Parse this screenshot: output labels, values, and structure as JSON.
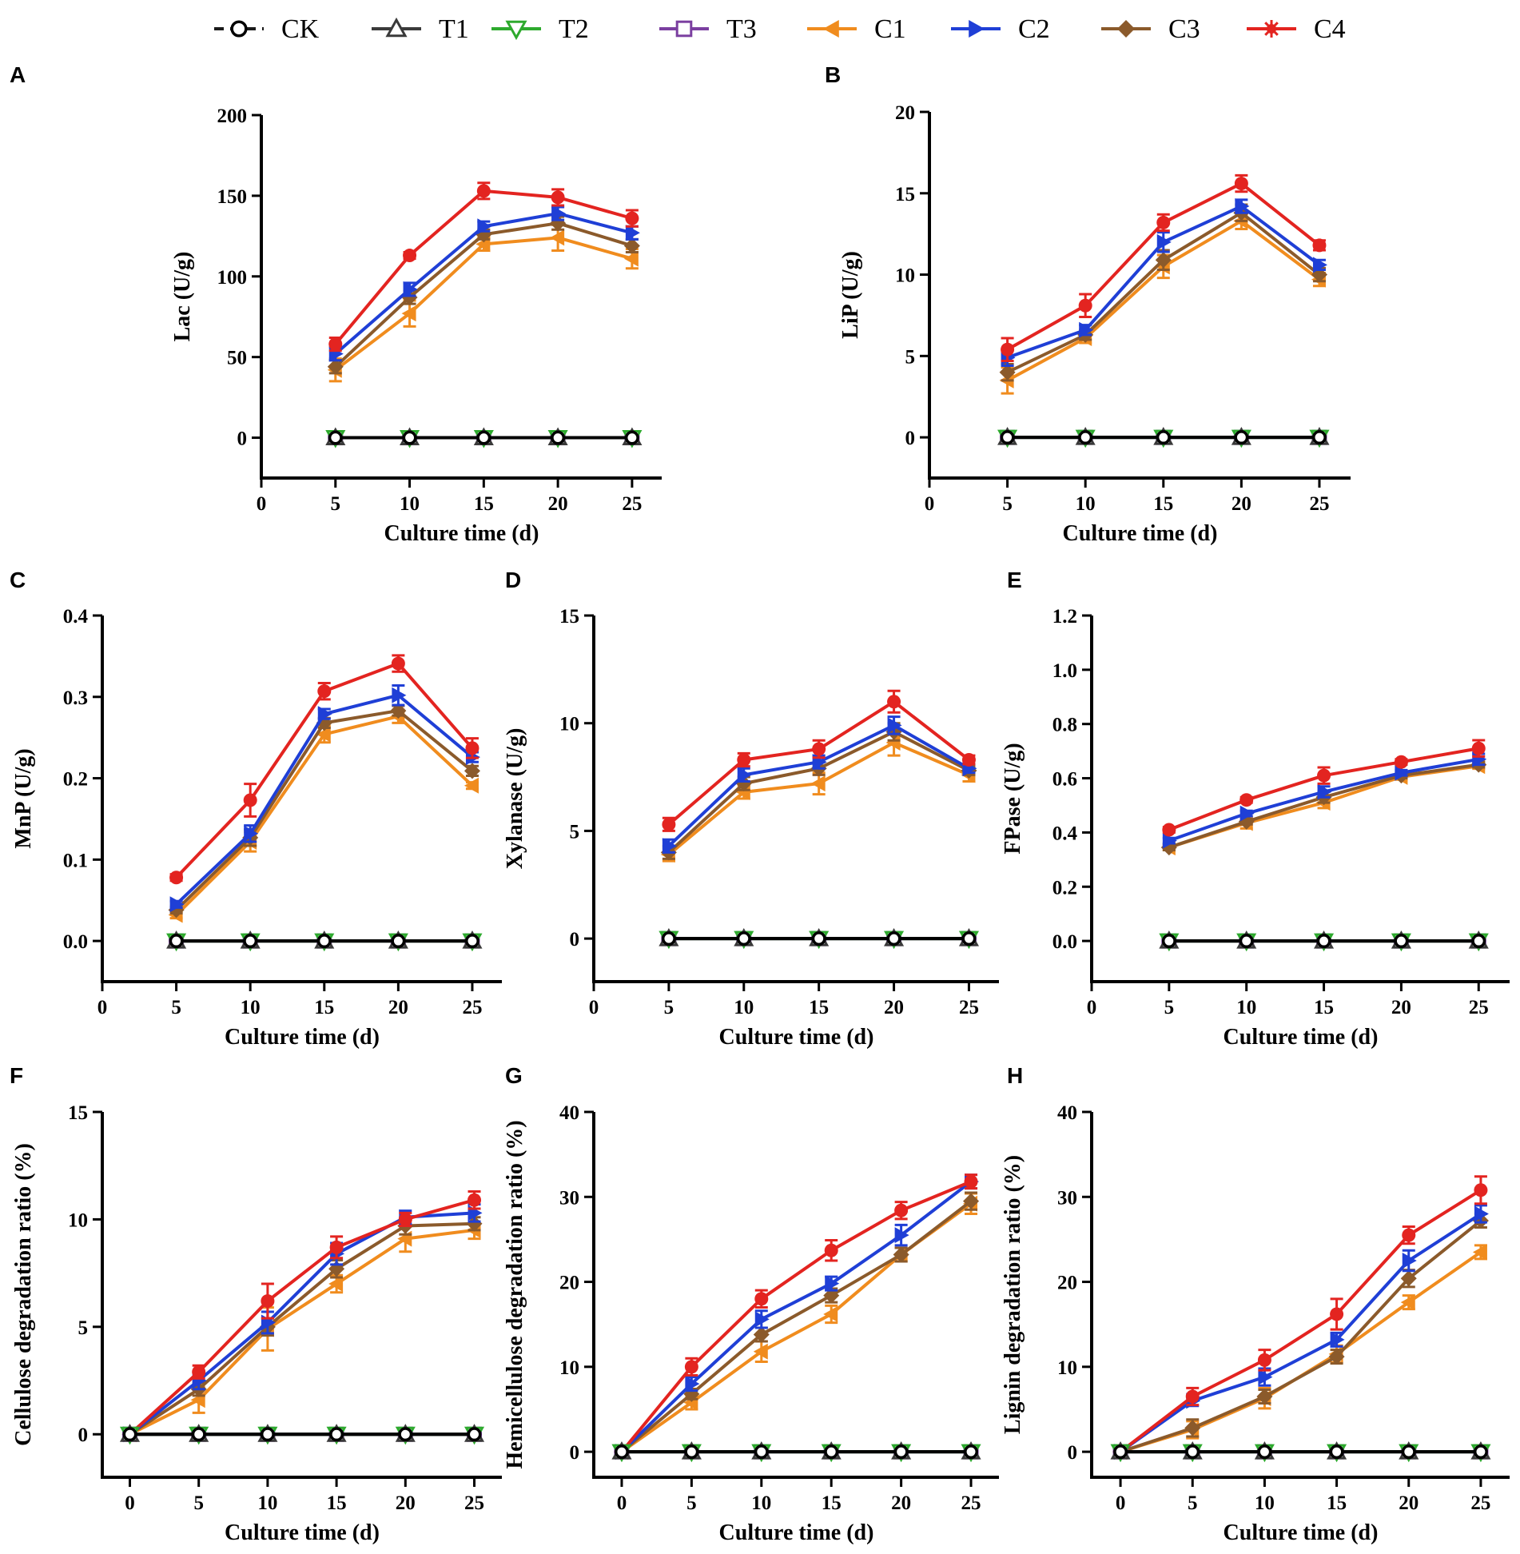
{
  "legend": [
    {
      "id": "CK",
      "label": "CK",
      "color": "#1a1a1a",
      "marker": "circle-open",
      "dashed": true
    },
    {
      "id": "T1",
      "label": "T1",
      "color": "#3a3a3a",
      "marker": "triangle-up"
    },
    {
      "id": "T2",
      "label": "T2",
      "color": "#2eaa2e",
      "marker": "triangle-down"
    },
    {
      "id": "T3",
      "label": "T3",
      "color": "#7b3fa0",
      "marker": "square-open"
    },
    {
      "id": "C1",
      "label": "C1",
      "color": "#f08c1e",
      "marker": "triangle-left"
    },
    {
      "id": "C2",
      "label": "C2",
      "color": "#1f3fd6",
      "marker": "triangle-right"
    },
    {
      "id": "C3",
      "label": "C3",
      "color": "#8b5a2b",
      "marker": "diamond"
    },
    {
      "id": "C4",
      "label": "C4",
      "color": "#e32420",
      "marker": "asterisk"
    }
  ],
  "chart_data": [
    {
      "panel": "A",
      "type": "line",
      "xlabel": "Culture time (d)",
      "ylabel": "Lac (U/g)",
      "xlim": [
        0,
        27
      ],
      "ylim": [
        -25,
        200
      ],
      "xticks": [
        0,
        5,
        10,
        15,
        20,
        25
      ],
      "yticks": [
        0,
        50,
        100,
        150,
        200
      ],
      "x": [
        5,
        10,
        15,
        20,
        25
      ],
      "series": [
        {
          "name": "C4",
          "values": [
            58,
            113,
            153,
            149,
            136
          ],
          "err": [
            4,
            2,
            5,
            5,
            5
          ]
        },
        {
          "name": "C2",
          "values": [
            52,
            92,
            131,
            139,
            127
          ],
          "err": [
            4,
            4,
            3,
            4,
            4
          ]
        },
        {
          "name": "C3",
          "values": [
            44,
            87,
            126,
            133,
            119
          ],
          "err": [
            4,
            4,
            3,
            4,
            4
          ]
        },
        {
          "name": "C1",
          "values": [
            42,
            77,
            120,
            124,
            111
          ],
          "err": [
            7,
            8,
            4,
            8,
            6
          ]
        },
        {
          "name": "CK",
          "values": [
            0,
            0,
            0,
            0,
            0
          ]
        },
        {
          "name": "T1",
          "values": [
            0,
            0,
            0,
            0,
            0
          ]
        },
        {
          "name": "T2",
          "values": [
            0,
            0,
            0,
            0,
            0
          ]
        },
        {
          "name": "T3",
          "values": [
            0,
            0,
            0,
            0,
            0
          ]
        }
      ]
    },
    {
      "panel": "B",
      "type": "line",
      "xlabel": "Culture time (d)",
      "ylabel": "LiP (U/g)",
      "xlim": [
        0,
        27
      ],
      "ylim": [
        -2.5,
        20
      ],
      "xticks": [
        0,
        5,
        10,
        15,
        20,
        25
      ],
      "yticks": [
        0,
        5,
        10,
        15,
        20
      ],
      "x": [
        5,
        10,
        15,
        20,
        25
      ],
      "series": [
        {
          "name": "C4",
          "values": [
            5.4,
            8.1,
            13.2,
            15.6,
            11.8
          ],
          "err": [
            0.7,
            0.7,
            0.5,
            0.5,
            0.3
          ]
        },
        {
          "name": "C2",
          "values": [
            4.9,
            6.6,
            12.0,
            14.2,
            10.6
          ],
          "err": [
            0.5,
            0.3,
            0.6,
            0.4,
            0.3
          ]
        },
        {
          "name": "C3",
          "values": [
            4.0,
            6.3,
            10.9,
            13.8,
            10.0
          ],
          "err": [
            0.5,
            0.3,
            0.6,
            0.5,
            0.4
          ]
        },
        {
          "name": "C1",
          "values": [
            3.5,
            6.1,
            10.5,
            13.3,
            9.7
          ],
          "err": [
            0.8,
            0.3,
            0.7,
            0.5,
            0.4
          ]
        },
        {
          "name": "CK",
          "values": [
            0,
            0,
            0,
            0,
            0
          ]
        },
        {
          "name": "T1",
          "values": [
            0,
            0,
            0,
            0,
            0
          ]
        },
        {
          "name": "T2",
          "values": [
            0,
            0,
            0,
            0,
            0
          ]
        },
        {
          "name": "T3",
          "values": [
            0,
            0,
            0,
            0,
            0
          ]
        }
      ]
    },
    {
      "panel": "C",
      "type": "line",
      "xlabel": "Culture time (d)",
      "ylabel": "MnP (U/g)",
      "xlim": [
        0,
        27
      ],
      "ylim": [
        -0.05,
        0.4
      ],
      "xticks": [
        0,
        5,
        10,
        15,
        20,
        25
      ],
      "yticks": [
        0.0,
        0.1,
        0.2,
        0.3,
        0.4
      ],
      "ytick_labels": [
        "0.0",
        "0.1",
        "0.2",
        "0.3",
        "0.4"
      ],
      "x": [
        5,
        10,
        15,
        20,
        25
      ],
      "series": [
        {
          "name": "C4",
          "values": [
            0.078,
            0.173,
            0.307,
            0.341,
            0.237
          ],
          "err": [
            0.004,
            0.02,
            0.01,
            0.01,
            0.012
          ]
        },
        {
          "name": "C2",
          "values": [
            0.045,
            0.132,
            0.279,
            0.302,
            0.226
          ],
          "err": [
            0.004,
            0.01,
            0.006,
            0.012,
            0.006
          ]
        },
        {
          "name": "C3",
          "values": [
            0.038,
            0.127,
            0.268,
            0.283,
            0.209
          ],
          "err": [
            0.004,
            0.01,
            0.006,
            0.006,
            0.006
          ]
        },
        {
          "name": "C1",
          "values": [
            0.032,
            0.122,
            0.254,
            0.276,
            0.191
          ],
          "err": [
            0.004,
            0.012,
            0.01,
            0.008,
            0.004
          ]
        },
        {
          "name": "CK",
          "values": [
            0,
            0,
            0,
            0,
            0
          ]
        },
        {
          "name": "T1",
          "values": [
            0,
            0,
            0,
            0,
            0
          ]
        },
        {
          "name": "T2",
          "values": [
            0,
            0,
            0,
            0,
            0
          ]
        },
        {
          "name": "T3",
          "values": [
            0,
            0,
            0,
            0,
            0
          ]
        }
      ]
    },
    {
      "panel": "D",
      "type": "line",
      "xlabel": "Culture time (d)",
      "ylabel": "Xylanase (U/g)",
      "xlim": [
        0,
        27
      ],
      "ylim": [
        -2,
        15
      ],
      "xticks": [
        0,
        5,
        10,
        15,
        20,
        25
      ],
      "yticks": [
        0,
        5,
        10,
        15
      ],
      "x": [
        5,
        10,
        15,
        20,
        25
      ],
      "series": [
        {
          "name": "C4",
          "values": [
            5.3,
            8.3,
            8.8,
            11.0,
            8.3
          ],
          "err": [
            0.3,
            0.3,
            0.4,
            0.5,
            0.2
          ]
        },
        {
          "name": "C2",
          "values": [
            4.3,
            7.6,
            8.2,
            9.9,
            7.9
          ],
          "err": [
            0.3,
            0.3,
            0.3,
            0.4,
            0.2
          ]
        },
        {
          "name": "C3",
          "values": [
            4.0,
            7.2,
            7.9,
            9.6,
            7.8
          ],
          "err": [
            0.3,
            0.3,
            0.3,
            0.4,
            0.2
          ]
        },
        {
          "name": "C1",
          "values": [
            3.9,
            6.8,
            7.2,
            9.1,
            7.6
          ],
          "err": [
            0.3,
            0.3,
            0.5,
            0.6,
            0.3
          ]
        },
        {
          "name": "CK",
          "values": [
            0,
            0,
            0,
            0,
            0
          ]
        },
        {
          "name": "T1",
          "values": [
            0,
            0,
            0,
            0,
            0
          ]
        },
        {
          "name": "T2",
          "values": [
            0,
            0,
            0,
            0,
            0
          ]
        },
        {
          "name": "T3",
          "values": [
            0,
            0,
            0,
            0,
            0
          ]
        }
      ]
    },
    {
      "panel": "E",
      "type": "line",
      "xlabel": "Culture time (d)",
      "ylabel": "FPase (U/g)",
      "xlim": [
        0,
        27
      ],
      "ylim": [
        -0.15,
        1.2
      ],
      "xticks": [
        0,
        5,
        10,
        15,
        20,
        25
      ],
      "yticks": [
        0.0,
        0.2,
        0.4,
        0.6,
        0.8,
        1.0,
        1.2
      ],
      "ytick_labels": [
        "0.0",
        "0.2",
        "0.4",
        "0.6",
        "0.8",
        "1.0",
        "1.2"
      ],
      "x": [
        5,
        10,
        15,
        20,
        25
      ],
      "series": [
        {
          "name": "C4",
          "values": [
            0.41,
            0.52,
            0.61,
            0.66,
            0.71
          ],
          "err": [
            0.01,
            0.01,
            0.03,
            0.01,
            0.03
          ]
        },
        {
          "name": "C2",
          "values": [
            0.37,
            0.47,
            0.55,
            0.62,
            0.67
          ],
          "err": [
            0.01,
            0.01,
            0.02,
            0.01,
            0.02
          ]
        },
        {
          "name": "C3",
          "values": [
            0.345,
            0.44,
            0.53,
            0.61,
            0.65
          ],
          "err": [
            0.01,
            0.01,
            0.02,
            0.01,
            0.01
          ]
        },
        {
          "name": "C1",
          "values": [
            0.345,
            0.435,
            0.51,
            0.605,
            0.645
          ],
          "err": [
            0.01,
            0.02,
            0.02,
            0.01,
            0.01
          ]
        },
        {
          "name": "CK",
          "values": [
            0,
            0,
            0,
            0,
            0
          ]
        },
        {
          "name": "T1",
          "values": [
            0,
            0,
            0,
            0,
            0
          ]
        },
        {
          "name": "T2",
          "values": [
            0,
            0,
            0,
            0,
            0
          ]
        },
        {
          "name": "T3",
          "values": [
            0,
            0,
            0,
            0,
            0
          ]
        }
      ]
    },
    {
      "panel": "F",
      "type": "line",
      "xlabel": "Culture time (d)",
      "ylabel": "Cellulose degradation ratio (%)",
      "xlim": [
        -2,
        27
      ],
      "ylim": [
        -2,
        15
      ],
      "xticks": [
        0,
        5,
        10,
        15,
        20,
        25
      ],
      "yticks": [
        0,
        5,
        10,
        15
      ],
      "x": [
        0,
        5,
        10,
        15,
        20,
        25
      ],
      "series": [
        {
          "name": "C4",
          "values": [
            0,
            2.9,
            6.2,
            8.7,
            10.0,
            10.9
          ],
          "err": [
            0,
            0.3,
            0.8,
            0.5,
            0.3,
            0.4
          ]
        },
        {
          "name": "C2",
          "values": [
            0,
            2.5,
            5.2,
            8.4,
            10.1,
            10.3
          ],
          "err": [
            0,
            0.4,
            0.5,
            0.5,
            0.3,
            0.4
          ]
        },
        {
          "name": "C3",
          "values": [
            0,
            2.1,
            5.0,
            7.7,
            9.7,
            9.8
          ],
          "err": [
            0,
            0.3,
            0.4,
            0.4,
            0.4,
            0.3
          ]
        },
        {
          "name": "C1",
          "values": [
            0,
            1.6,
            4.9,
            7.0,
            9.1,
            9.5
          ],
          "err": [
            0,
            0.6,
            1.0,
            0.4,
            0.6,
            0.4
          ]
        },
        {
          "name": "CK",
          "values": [
            0,
            0,
            0,
            0,
            0,
            0
          ]
        },
        {
          "name": "T1",
          "values": [
            0,
            0,
            0,
            0,
            0,
            0
          ]
        },
        {
          "name": "T2",
          "values": [
            0,
            0,
            0,
            0,
            0,
            0
          ]
        },
        {
          "name": "T3",
          "values": [
            0,
            0,
            0,
            0,
            0,
            0
          ]
        }
      ]
    },
    {
      "panel": "G",
      "type": "line",
      "xlabel": "Culture time (d)",
      "ylabel": "Hemicellulose degradation ratio (%)",
      "xlim": [
        -2,
        27
      ],
      "ylim": [
        -3,
        40
      ],
      "xticks": [
        0,
        5,
        10,
        15,
        20,
        25
      ],
      "yticks": [
        0,
        10,
        20,
        30,
        40
      ],
      "x": [
        0,
        5,
        10,
        15,
        20,
        25
      ],
      "series": [
        {
          "name": "C4",
          "values": [
            0,
            10.0,
            18.0,
            23.7,
            28.4,
            31.8
          ],
          "err": [
            0,
            1.0,
            1.0,
            1.2,
            1.0,
            0.8
          ]
        },
        {
          "name": "C2",
          "values": [
            0,
            8.0,
            15.6,
            19.8,
            25.5,
            31.8
          ],
          "err": [
            0,
            0.8,
            1.0,
            0.8,
            1.2,
            0.8
          ]
        },
        {
          "name": "C3",
          "values": [
            0,
            6.8,
            13.8,
            18.4,
            23.2,
            29.5
          ],
          "err": [
            0,
            0.6,
            0.8,
            0.8,
            0.8,
            1.0
          ]
        },
        {
          "name": "C1",
          "values": [
            0,
            5.8,
            11.8,
            16.2,
            23.2,
            29.2
          ],
          "err": [
            0,
            0.8,
            1.2,
            1.0,
            0.8,
            1.2
          ]
        },
        {
          "name": "CK",
          "values": [
            0,
            0,
            0,
            0,
            0,
            0
          ]
        },
        {
          "name": "T1",
          "values": [
            0,
            0,
            0,
            0,
            0,
            0
          ]
        },
        {
          "name": "T2",
          "values": [
            0,
            0,
            0,
            0,
            0,
            0
          ]
        },
        {
          "name": "T3",
          "values": [
            0,
            0,
            0,
            0,
            0,
            0
          ]
        }
      ]
    },
    {
      "panel": "H",
      "type": "line",
      "xlabel": "Culture time (d)",
      "ylabel": "Lignin degradation ratio (%)",
      "xlim": [
        -2,
        27
      ],
      "ylim": [
        -3,
        40
      ],
      "xticks": [
        0,
        5,
        10,
        15,
        20,
        25
      ],
      "yticks": [
        0,
        10,
        20,
        30,
        40
      ],
      "x": [
        0,
        5,
        10,
        15,
        20,
        25
      ],
      "series": [
        {
          "name": "C4",
          "values": [
            0,
            6.5,
            10.8,
            16.2,
            25.5,
            30.8
          ],
          "err": [
            0,
            1.0,
            1.2,
            1.8,
            1.0,
            1.6
          ]
        },
        {
          "name": "C2",
          "values": [
            0,
            6.0,
            8.8,
            13.2,
            22.5,
            28.0
          ],
          "err": [
            0,
            0.6,
            1.0,
            0.8,
            1.2,
            1.0
          ]
        },
        {
          "name": "C3",
          "values": [
            0,
            2.8,
            6.5,
            11.2,
            20.4,
            27.2
          ],
          "err": [
            0,
            1.0,
            0.8,
            0.8,
            1.0,
            0.8
          ]
        },
        {
          "name": "C1",
          "values": [
            0,
            2.6,
            6.3,
            11.5,
            17.6,
            23.5
          ],
          "err": [
            0,
            1.0,
            1.2,
            1.0,
            0.8,
            0.8
          ]
        },
        {
          "name": "CK",
          "values": [
            0,
            0,
            0,
            0,
            0,
            0
          ]
        },
        {
          "name": "T1",
          "values": [
            0,
            0,
            0,
            0,
            0,
            0
          ]
        },
        {
          "name": "T2",
          "values": [
            0,
            0,
            0,
            0,
            0,
            0
          ]
        },
        {
          "name": "T3",
          "values": [
            0,
            0,
            0,
            0,
            0,
            0
          ]
        }
      ]
    }
  ]
}
